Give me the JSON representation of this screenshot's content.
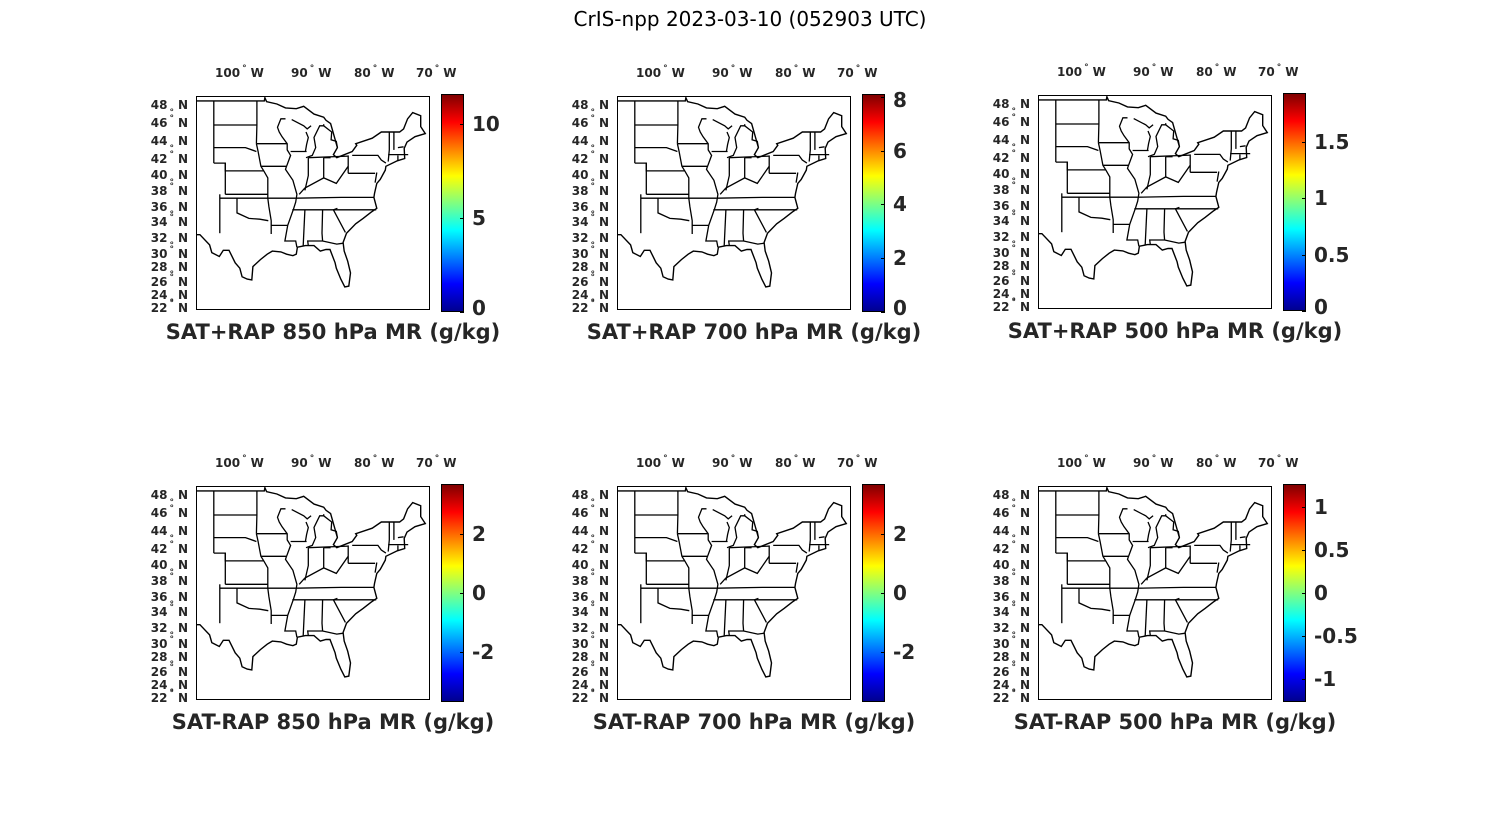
{
  "figure": {
    "suptitle": "CrIS-npp 2023-03-10 (052903 UTC)"
  },
  "map": {
    "lon_ticks": [
      "100",
      "90",
      "80",
      "70"
    ],
    "lon_hemisphere": "W",
    "lat_ticks": [
      "48",
      "46",
      "44",
      "42",
      "40",
      "38",
      "36",
      "34",
      "32",
      "30",
      "28",
      "26",
      "24",
      "22"
    ],
    "lat_hemisphere": "N",
    "degree_symbol": "°",
    "line_color": "#000000",
    "fill_color": "#ffffff"
  },
  "colormap": "jet",
  "chart_data": [
    {
      "type": "heatmap",
      "id": "p850",
      "title": "SAT+RAP 850 hPa MR (g/kg)",
      "colorbar_range": [
        0,
        11.6
      ],
      "colorbar_ticks": [
        "0",
        "5",
        "10"
      ],
      "colorbar_tick_values": [
        0,
        5,
        10
      ]
    },
    {
      "type": "heatmap",
      "id": "p700",
      "title": "SAT+RAP 700 hPa MR (g/kg)",
      "colorbar_range": [
        0,
        8.1
      ],
      "colorbar_ticks": [
        "0",
        "2",
        "4",
        "6",
        "8"
      ],
      "colorbar_tick_values": [
        0,
        2,
        4,
        6,
        8
      ]
    },
    {
      "type": "heatmap",
      "id": "p500",
      "title": "SAT+RAP 500 hPa MR (g/kg)",
      "colorbar_range": [
        0,
        1.93
      ],
      "colorbar_ticks": [
        "0",
        "0.5",
        "1",
        "1.5"
      ],
      "colorbar_tick_values": [
        0,
        0.5,
        1,
        1.5
      ]
    },
    {
      "type": "heatmap",
      "id": "d850",
      "title": "SAT-RAP 850 hPa MR (g/kg)",
      "colorbar_range": [
        -3.7,
        3.7
      ],
      "colorbar_ticks": [
        "-2",
        "0",
        "2"
      ],
      "colorbar_tick_values": [
        -2,
        0,
        2
      ]
    },
    {
      "type": "heatmap",
      "id": "d700",
      "title": "SAT-RAP 700 hPa MR (g/kg)",
      "colorbar_range": [
        -3.7,
        3.7
      ],
      "colorbar_ticks": [
        "-2",
        "0",
        "2"
      ],
      "colorbar_tick_values": [
        -2,
        0,
        2
      ]
    },
    {
      "type": "heatmap",
      "id": "d500",
      "title": "SAT-RAP 500 hPa MR (g/kg)",
      "colorbar_range": [
        -1.27,
        1.27
      ],
      "colorbar_ticks": [
        "-1",
        "-0.5",
        "0",
        "0.5",
        "1"
      ],
      "colorbar_tick_values": [
        -1,
        -0.5,
        0,
        0.5,
        1
      ]
    }
  ]
}
